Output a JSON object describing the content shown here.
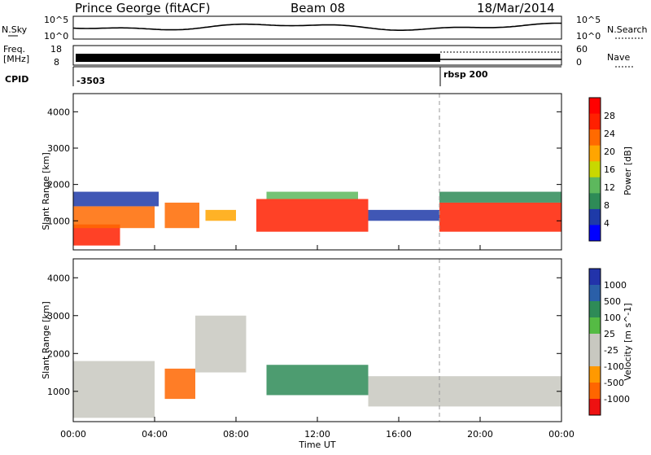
{
  "header": {
    "station": "Prince George (fitACF)",
    "beam": "Beam 08",
    "date": "18/Mar/2014"
  },
  "panels": {
    "nsky": {
      "label": "N.Sky",
      "ticks": [
        "10^5",
        "10^0"
      ],
      "right_ticks": [
        "10^5",
        "10^0"
      ],
      "right_label": "N.Search"
    },
    "freq": {
      "label_line1": "Freq.",
      "label_line2": "[MHz]",
      "ticks": [
        "18",
        "8"
      ],
      "right_ticks": [
        "60",
        "0"
      ],
      "right_label": "Nave"
    },
    "cpid": {
      "label": "CPID",
      "value1": "-3503",
      "value2": "rbsp 200"
    }
  },
  "colors": {
    "power": [
      "#0000ff",
      "#1e3aa8",
      "#2e8b57",
      "#5db85d",
      "#c8d800",
      "#ffa500",
      "#ff6a00",
      "#ff2000",
      "#ff0000"
    ],
    "velocity": [
      "#2233aa",
      "#2a5fa8",
      "#2e8b57",
      "#55bb44",
      "#c8c8c0",
      "#c8c8c0",
      "#ff9900",
      "#ff6600",
      "#ee1111"
    ],
    "ground_scatter": "#c0c0b8"
  },
  "chart_data": [
    {
      "type": "heatmap",
      "title": "Power",
      "xlabel": "Time UT",
      "ylabel": "Slant Range [km]",
      "x_ticks": [
        "00:00",
        "04:00",
        "08:00",
        "12:00",
        "16:00",
        "20:00",
        "00:00"
      ],
      "y_ticks": [
        "1000",
        "2000",
        "3000",
        "4000"
      ],
      "ylim": [
        200,
        4500
      ],
      "xlim_hours": [
        0,
        24
      ],
      "colorbar": {
        "label": "Power [dB]",
        "ticks": [
          "28",
          "24",
          "20",
          "16",
          "12",
          "8",
          "4"
        ]
      },
      "marker_line_hour": 18.0,
      "regions": [
        {
          "t": [
            0.0,
            2.3
          ],
          "r": [
            320,
            900
          ],
          "level": 28
        },
        {
          "t": [
            0.0,
            4.0
          ],
          "r": [
            800,
            1400
          ],
          "level": 24
        },
        {
          "t": [
            0.0,
            4.2
          ],
          "r": [
            1400,
            1800
          ],
          "level": 8
        },
        {
          "t": [
            4.5,
            6.2
          ],
          "r": [
            800,
            1500
          ],
          "level": 24
        },
        {
          "t": [
            6.5,
            8.0
          ],
          "r": [
            1000,
            1300
          ],
          "level": 20
        },
        {
          "t": [
            9.0,
            14.5
          ],
          "r": [
            700,
            1600
          ],
          "level": 28
        },
        {
          "t": [
            9.5,
            14.0
          ],
          "r": [
            1600,
            1800
          ],
          "level": 16
        },
        {
          "t": [
            14.5,
            18.0
          ],
          "r": [
            1000,
            1300
          ],
          "level": 8
        },
        {
          "t": [
            18.0,
            24.0
          ],
          "r": [
            700,
            1500
          ],
          "level": 28
        },
        {
          "t": [
            18.0,
            24.0
          ],
          "r": [
            1500,
            1800
          ],
          "level": 12
        }
      ]
    },
    {
      "type": "heatmap",
      "title": "Velocity",
      "xlabel": "Time UT",
      "ylabel": "Slant Range [km]",
      "x_ticks": [
        "00:00",
        "04:00",
        "08:00",
        "12:00",
        "16:00",
        "20:00",
        "00:00"
      ],
      "y_ticks": [
        "1000",
        "2000",
        "3000",
        "4000"
      ],
      "ylim": [
        200,
        4500
      ],
      "xlim_hours": [
        0,
        24
      ],
      "colorbar": {
        "label": "Velocity [m s^-1]",
        "ticks": [
          "1000",
          "500",
          "100",
          "25",
          "-25",
          "-100",
          "-500",
          "-1000"
        ]
      },
      "marker_line_hour": 18.0,
      "regions": [
        {
          "t": [
            0.0,
            4.0
          ],
          "r": [
            300,
            1800
          ],
          "level": 25
        },
        {
          "t": [
            4.5,
            6.0
          ],
          "r": [
            800,
            1600
          ],
          "level": -500
        },
        {
          "t": [
            6.0,
            8.5
          ],
          "r": [
            1500,
            3000
          ],
          "level": 25
        },
        {
          "t": [
            9.5,
            14.5
          ],
          "r": [
            900,
            1700
          ],
          "level": 100
        },
        {
          "t": [
            14.5,
            24.0
          ],
          "r": [
            600,
            1400
          ],
          "level": 25
        }
      ]
    }
  ]
}
